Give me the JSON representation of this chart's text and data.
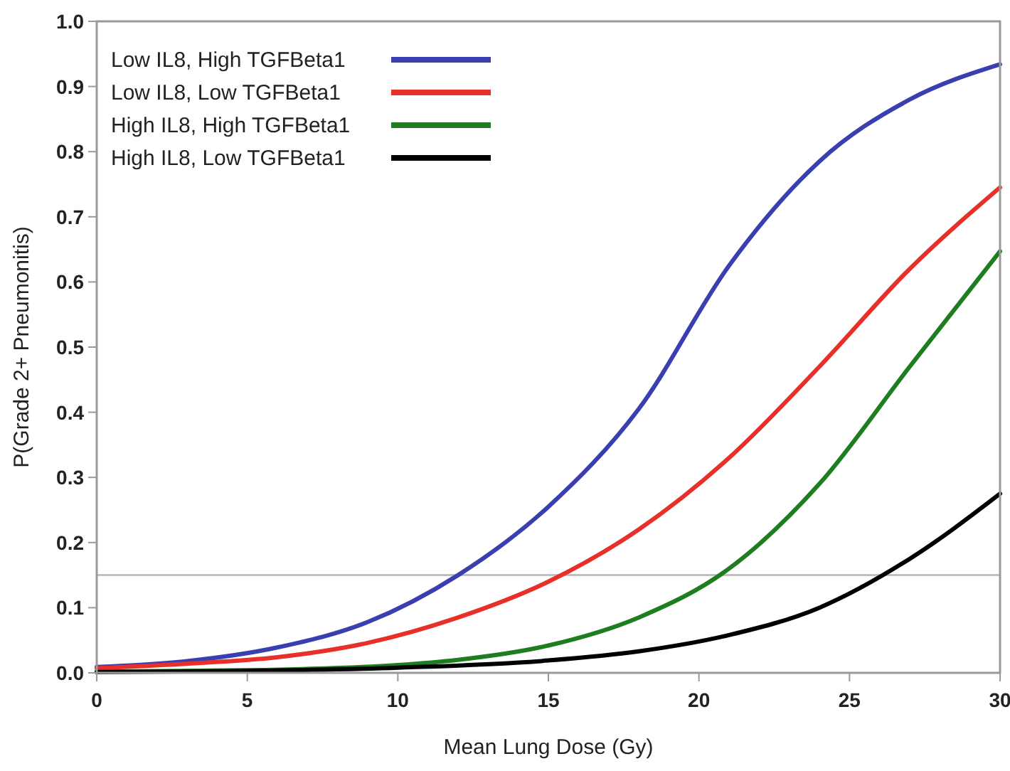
{
  "chart_data": {
    "type": "line",
    "xlabel": "Mean Lung Dose (Gy)",
    "ylabel": "P(Grade 2+ Pneumonitis)",
    "xlim": [
      0,
      30
    ],
    "xticks": [
      0,
      5,
      10,
      15,
      20,
      25,
      30
    ],
    "ylim": [
      0,
      1
    ],
    "yticks": [
      {
        "value": 0,
        "label": "0.0"
      },
      0.1,
      0.2,
      0.3,
      0.4,
      0.5,
      0.6,
      0.7,
      0.8,
      0.9,
      {
        "value": 1,
        "label": "1.0"
      }
    ],
    "grid": false,
    "legend": "top left",
    "marker": "none",
    "line_style": "solid",
    "ref_lines": [
      {
        "axis": "y",
        "value": 0.15,
        "color": "#c0c0c0"
      }
    ],
    "series": [
      {
        "name": "Low IL8, High TGFBeta1",
        "color": "#3a3fb0",
        "x": [
          0,
          3,
          6,
          9,
          12,
          15,
          18,
          21,
          24,
          27,
          30
        ],
        "values": [
          0.009,
          0.018,
          0.039,
          0.078,
          0.15,
          0.255,
          0.405,
          0.625,
          0.785,
          0.88,
          0.934
        ]
      },
      {
        "name": "Low IL8, Low TGFBeta1",
        "color": "#e8302a",
        "x": [
          0,
          3,
          6,
          9,
          12,
          15,
          18,
          21,
          24,
          27,
          30
        ],
        "values": [
          0.007,
          0.014,
          0.024,
          0.046,
          0.085,
          0.14,
          0.22,
          0.33,
          0.47,
          0.62,
          0.745
        ]
      },
      {
        "name": "High IL8, High TGFBeta1",
        "color": "#1e7d1e",
        "x": [
          0,
          5,
          10,
          12,
          15,
          18,
          21,
          24,
          27,
          30
        ],
        "values": [
          0.002,
          0.004,
          0.012,
          0.02,
          0.042,
          0.085,
          0.16,
          0.29,
          0.47,
          0.647
        ]
      },
      {
        "name": "High IL8, Low TGFBeta1",
        "color": "#000000",
        "x": [
          0,
          5,
          10,
          15,
          18,
          21,
          24,
          27,
          30
        ],
        "values": [
          0.001,
          0.003,
          0.008,
          0.019,
          0.033,
          0.058,
          0.1,
          0.175,
          0.275
        ]
      }
    ]
  }
}
